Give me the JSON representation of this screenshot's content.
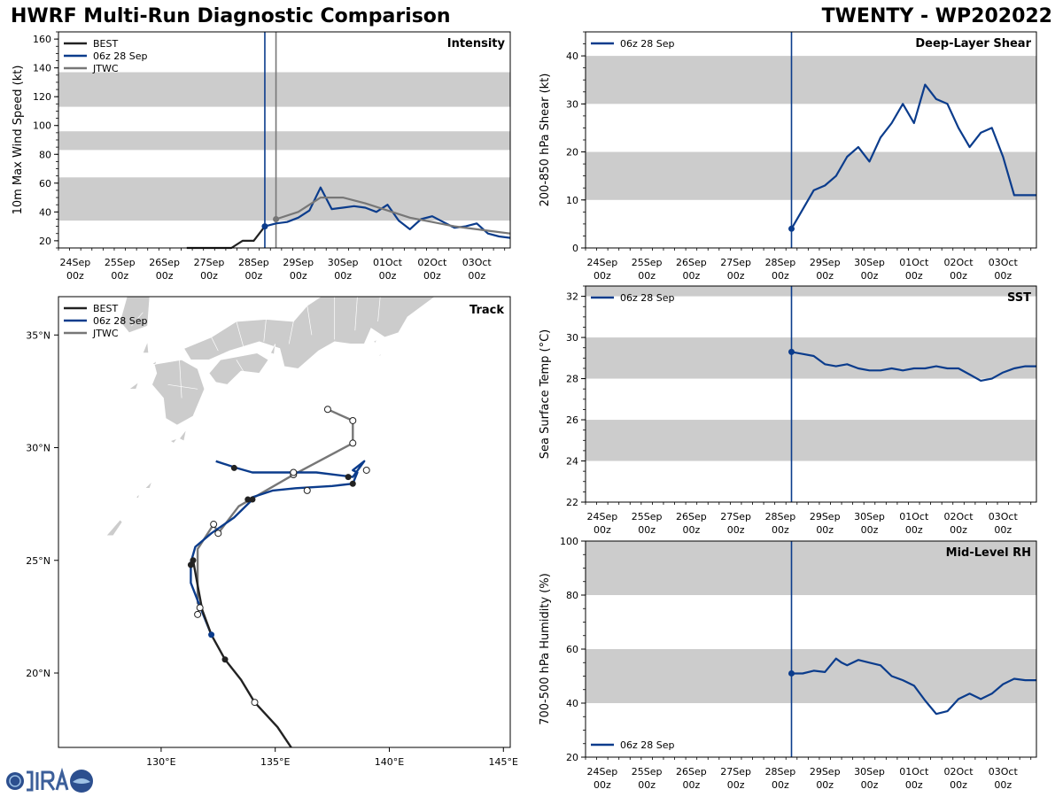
{
  "header": {
    "title": "HWRF Multi-Run Diagnostic Comparison",
    "storm": "TWENTY - WP202022"
  },
  "time_axis": {
    "ticks": [
      {
        "day": "24Sep",
        "hour": "00z",
        "t": 0
      },
      {
        "day": "25Sep",
        "hour": "00z",
        "t": 24
      },
      {
        "day": "26Sep",
        "hour": "00z",
        "t": 48
      },
      {
        "day": "27Sep",
        "hour": "00z",
        "t": 72
      },
      {
        "day": "28Sep",
        "hour": "00z",
        "t": 96
      },
      {
        "day": "29Sep",
        "hour": "00z",
        "t": 120
      },
      {
        "day": "30Sep",
        "hour": "00z",
        "t": 144
      },
      {
        "day": "01Oct",
        "hour": "00z",
        "t": 168
      },
      {
        "day": "02Oct",
        "hour": "00z",
        "t": 192
      },
      {
        "day": "03Oct",
        "hour": "00z",
        "t": 216
      }
    ],
    "range": [
      -9,
      234
    ]
  },
  "legend": {
    "best": "BEST",
    "run": "06z 28 Sep",
    "jtwc": "JTWC"
  },
  "colors": {
    "best": "#222222",
    "run": "#0b3c8c",
    "jtwc": "#777777",
    "band": "#cccccc"
  },
  "chart_data": [
    {
      "type": "line",
      "id": "intensity",
      "title": "Intensity",
      "ylabel": "10m Max Wind Speed (kt)",
      "ylim": [
        15,
        165
      ],
      "yticks": [
        20,
        40,
        60,
        80,
        100,
        120,
        140,
        160
      ],
      "bands": [
        [
          34,
          64
        ],
        [
          83,
          96
        ],
        [
          113,
          137
        ]
      ],
      "init_t": 102,
      "jtwc_t": 108,
      "series": [
        {
          "name": "BEST",
          "x": [
            60,
            66,
            72,
            78,
            84,
            90,
            96,
            102
          ],
          "values": [
            15,
            15,
            15,
            15,
            15,
            20,
            20,
            30
          ]
        },
        {
          "name": "06z 28 Sep",
          "x": [
            102,
            108,
            114,
            120,
            126,
            132,
            138,
            144,
            150,
            156,
            162,
            168,
            174,
            180,
            186,
            192,
            198,
            204,
            210,
            216,
            222,
            228,
            234
          ],
          "values": [
            30,
            32,
            33,
            36,
            41,
            57,
            42,
            43,
            44,
            43,
            40,
            45,
            34,
            28,
            35,
            37,
            33,
            29,
            30,
            32,
            25,
            23,
            22
          ]
        },
        {
          "name": "JTWC",
          "x": [
            108,
            120,
            132,
            138,
            144,
            156,
            168,
            180,
            192,
            204,
            216,
            228,
            234
          ],
          "values": [
            35,
            40,
            50,
            50,
            50,
            46,
            41,
            36,
            33,
            30,
            28,
            26,
            25
          ]
        }
      ]
    },
    {
      "type": "line",
      "id": "shear",
      "title": "Deep-Layer Shear",
      "ylabel": "200-850 hPa Shear (kt)",
      "ylim": [
        0,
        45
      ],
      "yticks": [
        0,
        10,
        20,
        30,
        40
      ],
      "bands": [
        [
          10,
          20
        ],
        [
          30,
          40
        ]
      ],
      "init_t": 102,
      "legend_pos": "top-left",
      "series": [
        {
          "name": "06z 28 Sep",
          "x": [
            102,
            108,
            114,
            120,
            126,
            132,
            138,
            144,
            150,
            156,
            162,
            168,
            174,
            180,
            186,
            192,
            198,
            204,
            210,
            216,
            222,
            228,
            234
          ],
          "values": [
            4,
            8,
            12,
            13,
            15,
            19,
            21,
            18,
            23,
            26,
            30,
            26,
            34,
            31,
            30,
            25,
            21,
            24,
            25,
            19,
            11,
            11,
            11
          ]
        }
      ]
    },
    {
      "type": "line",
      "id": "sst",
      "title": "SST",
      "ylabel": "Sea Surface Temp (°C)",
      "ylim": [
        22,
        32.5
      ],
      "yticks": [
        22,
        24,
        26,
        28,
        30,
        32
      ],
      "bands": [
        [
          24,
          26
        ],
        [
          28,
          30
        ],
        [
          32,
          32.5
        ]
      ],
      "init_t": 102,
      "legend_pos": "top-left",
      "series": [
        {
          "name": "06z 28 Sep",
          "x": [
            102,
            108,
            114,
            120,
            126,
            132,
            138,
            144,
            150,
            156,
            162,
            168,
            174,
            180,
            186,
            192,
            198,
            204,
            210,
            216,
            222,
            228,
            234
          ],
          "values": [
            29.3,
            29.2,
            29.1,
            28.7,
            28.6,
            28.7,
            28.5,
            28.4,
            28.4,
            28.5,
            28.4,
            28.5,
            28.5,
            28.6,
            28.5,
            28.5,
            28.2,
            27.9,
            28.0,
            28.3,
            28.5,
            28.6,
            28.6
          ]
        }
      ]
    },
    {
      "type": "line",
      "id": "rh",
      "title": "Mid-Level RH",
      "ylabel": "700-500 hPa Humidity (%)",
      "ylim": [
        20,
        100
      ],
      "yticks": [
        20,
        40,
        60,
        80,
        100
      ],
      "bands": [
        [
          40,
          60
        ],
        [
          80,
          100
        ]
      ],
      "init_t": 102,
      "legend_pos": "bottom-left",
      "series": [
        {
          "name": "06z 28 Sep",
          "x": [
            102,
            108,
            114,
            120,
            126,
            129,
            132,
            138,
            144,
            150,
            156,
            162,
            168,
            174,
            180,
            186,
            192,
            198,
            204,
            210,
            216,
            222,
            228,
            234
          ],
          "values": [
            51,
            51,
            52,
            51.5,
            56.5,
            55,
            54,
            56,
            55,
            54,
            50,
            48.5,
            46.5,
            41,
            36,
            37,
            41.5,
            43.5,
            41.5,
            43.5,
            47,
            49,
            48.5,
            48.5
          ]
        }
      ]
    },
    {
      "type": "track",
      "id": "track",
      "title": "Track",
      "xlim": [
        125.5,
        145.3
      ],
      "ylim": [
        16.7,
        36.7
      ],
      "xticks": [
        {
          "v": 130,
          "label": "130°E"
        },
        {
          "v": 135,
          "label": "135°E"
        },
        {
          "v": 140,
          "label": "140°E"
        },
        {
          "v": 145,
          "label": "145°E"
        }
      ],
      "yticks": [
        {
          "v": 20,
          "label": "20°N"
        },
        {
          "v": 25,
          "label": "25°N"
        },
        {
          "v": 30,
          "label": "30°N"
        },
        {
          "v": 35,
          "label": "35°N"
        }
      ],
      "series": [
        {
          "name": "BEST",
          "lon": [
            135.7,
            135.1,
            134.1,
            133.5,
            132.8,
            132.2,
            131.8,
            131.6,
            131.4,
            131.3
          ],
          "lat": [
            16.7,
            17.6,
            18.7,
            19.7,
            20.6,
            21.7,
            22.8,
            23.9,
            25.0,
            24.8
          ],
          "markers": [
            [
              132.8,
              20.6,
              "filled"
            ],
            [
              134.1,
              18.7,
              "open"
            ],
            [
              131.4,
              25.0,
              "filled"
            ],
            [
              131.3,
              24.8,
              "filled"
            ]
          ]
        },
        {
          "name": "06z 28 Sep",
          "lon": [
            132.2,
            131.8,
            131.3,
            131.3,
            131.5,
            132.2,
            133.2,
            133.9,
            134.0,
            134.9,
            135.9,
            137.5,
            138.4,
            138.6,
            138.4,
            138.9,
            138.4,
            136.8,
            134.9,
            134.0,
            133.3,
            132.4
          ],
          "lat": [
            21.7,
            22.7,
            24.0,
            24.9,
            25.6,
            26.2,
            26.9,
            27.6,
            27.8,
            28.1,
            28.2,
            28.3,
            28.4,
            28.9,
            29.0,
            29.4,
            28.7,
            28.9,
            28.9,
            28.9,
            29.1,
            29.4
          ],
          "markers": [
            [
              132.2,
              21.7,
              "filled"
            ],
            [
              134.0,
              27.7,
              "filled"
            ],
            [
              133.8,
              27.7,
              "filled"
            ],
            [
              138.4,
              28.4,
              "filled"
            ],
            [
              138.2,
              28.7,
              "filled"
            ],
            [
              133.2,
              29.1,
              "filled"
            ]
          ]
        },
        {
          "name": "JTWC",
          "lon": [
            131.6,
            131.7,
            131.6,
            131.6,
            132.3,
            132.5,
            133.4,
            135.8,
            138.4,
            138.4,
            137.3
          ],
          "lat": [
            22.6,
            23.0,
            23.1,
            25.5,
            26.6,
            26.2,
            27.4,
            28.8,
            30.2,
            31.2,
            31.7
          ],
          "markers": [
            [
              131.6,
              22.6,
              "open"
            ],
            [
              131.7,
              22.9,
              "open"
            ],
            [
              132.5,
              26.2,
              "open"
            ],
            [
              132.3,
              26.6,
              "open"
            ],
            [
              136.4,
              28.1,
              "open"
            ],
            [
              135.8,
              28.8,
              "open"
            ],
            [
              135.8,
              28.9,
              "open"
            ],
            [
              139.0,
              29.0,
              "open"
            ],
            [
              138.4,
              30.2,
              "open"
            ],
            [
              138.4,
              31.2,
              "open"
            ],
            [
              137.3,
              31.7,
              "open"
            ]
          ]
        }
      ]
    }
  ]
}
